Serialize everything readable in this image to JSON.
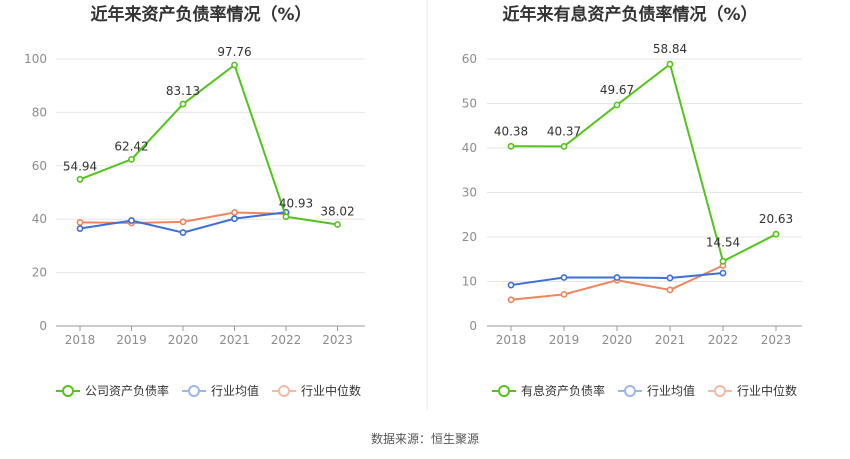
{
  "chart_data": [
    {
      "type": "line",
      "title": "近年来资产负债率情况（%）",
      "categories": [
        "2018",
        "2019",
        "2020",
        "2021",
        "2022",
        "2023"
      ],
      "ylim": [
        0,
        100
      ],
      "yticks": [
        0,
        20,
        40,
        60,
        80,
        100
      ],
      "grid": true,
      "legend_position": "bottom-left",
      "series": [
        {
          "name": "公司资产负债率",
          "color": "#52c41a",
          "values": [
            54.94,
            62.42,
            83.13,
            97.76,
            40.93,
            38.02
          ],
          "labels": [
            "54.94",
            "62.42",
            "83.13",
            "97.76",
            "40.93",
            "38.02"
          ]
        },
        {
          "name": "行业均值",
          "color": "#3c6fd8",
          "values": [
            36.5,
            39.5,
            35.0,
            40.2,
            42.6,
            null
          ]
        },
        {
          "name": "行业中位数",
          "color": "#f0845c",
          "values": [
            38.8,
            38.6,
            39.0,
            42.5,
            42.0,
            null
          ]
        }
      ]
    },
    {
      "type": "line",
      "title": "近年来有息资产负债率情况（%）",
      "categories": [
        "2018",
        "2019",
        "2020",
        "2021",
        "2022",
        "2023"
      ],
      "ylim": [
        0,
        60
      ],
      "yticks": [
        0,
        10,
        20,
        30,
        40,
        50,
        60
      ],
      "grid": true,
      "legend_position": "bottom-left",
      "series": [
        {
          "name": "有息资产负债率",
          "color": "#52c41a",
          "values": [
            40.38,
            40.37,
            49.67,
            58.84,
            14.54,
            20.63
          ],
          "labels": [
            "40.38",
            "40.37",
            "49.67",
            "58.84",
            "14.54",
            "20.63"
          ]
        },
        {
          "name": "行业均值",
          "color": "#3c6fd8",
          "values": [
            9.2,
            10.9,
            10.9,
            10.8,
            11.9,
            null
          ]
        },
        {
          "name": "行业中位数",
          "color": "#f0845c",
          "values": [
            5.9,
            7.1,
            10.3,
            8.1,
            13.6,
            null
          ]
        }
      ]
    }
  ],
  "footer": {
    "source": "数据来源：恒生聚源"
  }
}
